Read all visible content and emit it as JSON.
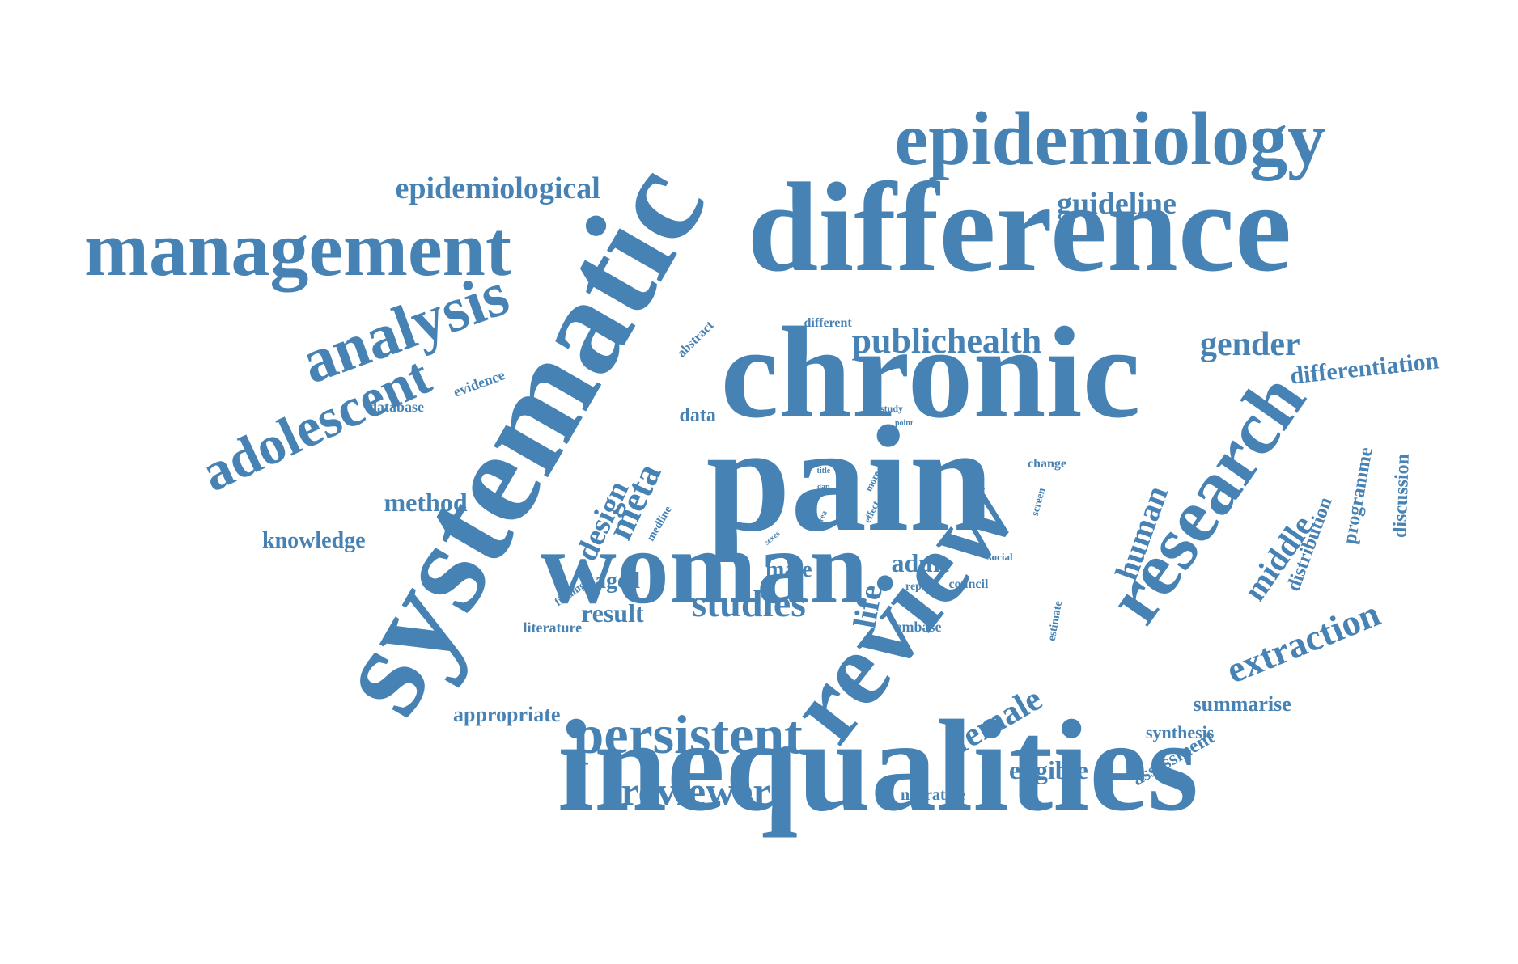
{
  "colors": {
    "text": "#4682b4",
    "background": "#ffffff"
  },
  "words": [
    "systematic",
    "difference",
    "chronic",
    "pain",
    "inequalities",
    "woman",
    "review",
    "epidemiology",
    "management",
    "research",
    "analysis",
    "adolescent",
    "persistent",
    "reviewer",
    "epidemiological",
    "guideline",
    "publichealth",
    "gender",
    "differentiation",
    "studies",
    "human",
    "extraction",
    "middle",
    "female",
    "life",
    "design",
    "meta",
    "method",
    "eligible",
    "aged",
    "result",
    "male",
    "adult",
    "knowledge",
    "appropriate",
    "summarise",
    "programme",
    "distribution",
    "discussion",
    "assessment",
    "synthesis",
    "narrative",
    "data",
    "database",
    "evidence",
    "abstract",
    "different",
    "literature",
    "embase",
    "council",
    "report",
    "social",
    "estimate",
    "change",
    "screen",
    "finding",
    "medline",
    "study",
    "point",
    "title",
    "more",
    "gap",
    "area",
    "effect",
    "sexes"
  ]
}
